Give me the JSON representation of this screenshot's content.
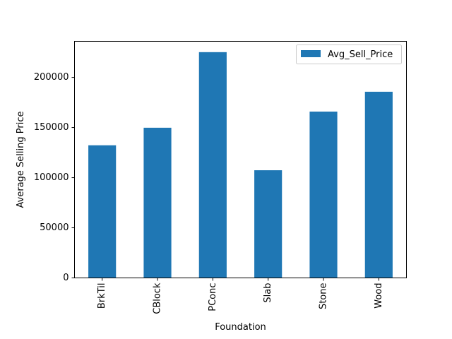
{
  "chart_data": {
    "type": "bar",
    "title": "",
    "xlabel": "Foundation",
    "ylabel": "Average Selling Price",
    "categories": [
      "BrkTil",
      "CBlock",
      "PConc",
      "Slab",
      "Stone",
      "Wood"
    ],
    "series": [
      {
        "name": "Avg_Sell_Price",
        "color": "#1f77b4",
        "values": [
          132300,
          149800,
          225200,
          107400,
          165900,
          185700
        ]
      }
    ],
    "ylim": [
      0,
      236000
    ],
    "yticks": [
      0,
      50000,
      100000,
      150000,
      200000
    ],
    "ytick_labels": [
      "0",
      "50000",
      "100000",
      "150000",
      "200000"
    ],
    "legend_placement": "top-right",
    "grid": false
  }
}
